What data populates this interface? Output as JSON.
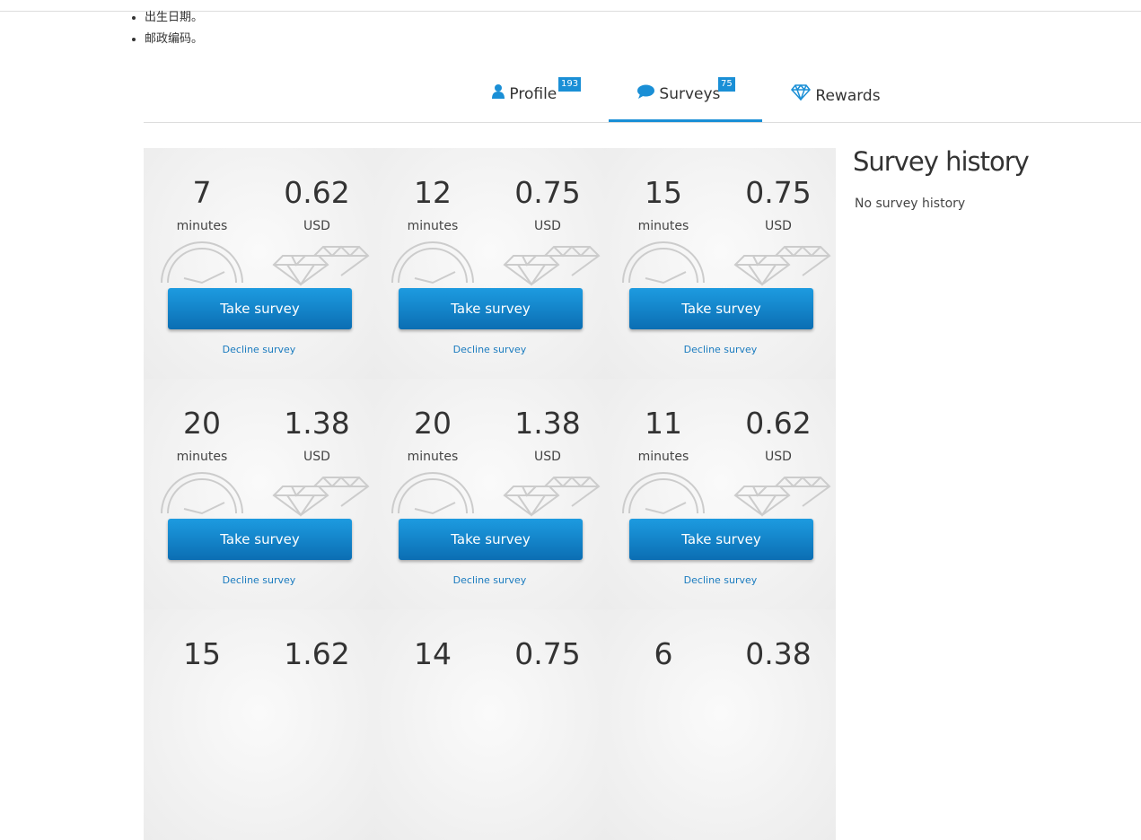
{
  "notes": [
    "出生日期。",
    "邮政编码。"
  ],
  "tabs": [
    {
      "label": "Profile",
      "badge": 193
    },
    {
      "label": "Surveys",
      "badge": 75
    },
    {
      "label": "Rewards"
    }
  ],
  "surveys": [
    {
      "minutes": 7,
      "minutes_label": "minutes",
      "reward": 0.62,
      "currency": "USD",
      "take": "Take survey",
      "decline": "Decline survey"
    },
    {
      "minutes": 12,
      "minutes_label": "minutes",
      "reward": 0.75,
      "currency": "USD",
      "take": "Take survey",
      "decline": "Decline survey"
    },
    {
      "minutes": 15,
      "minutes_label": "minutes",
      "reward": 0.75,
      "currency": "USD",
      "take": "Take survey",
      "decline": "Decline survey"
    },
    {
      "minutes": 20,
      "minutes_label": "minutes",
      "reward": 1.38,
      "currency": "USD",
      "take": "Take survey",
      "decline": "Decline survey"
    },
    {
      "minutes": 20,
      "minutes_label": "minutes",
      "reward": 1.38,
      "currency": "USD",
      "take": "Take survey",
      "decline": "Decline survey"
    },
    {
      "minutes": 11,
      "minutes_label": "minutes",
      "reward": 0.62,
      "currency": "USD",
      "take": "Take survey",
      "decline": "Decline survey"
    },
    {
      "minutes": 15,
      "reward": 1.62
    },
    {
      "minutes": 14,
      "reward": 0.75
    },
    {
      "minutes": 6,
      "reward": 0.38
    }
  ],
  "sidebar": {
    "title": "Survey history",
    "empty": "No survey history"
  }
}
